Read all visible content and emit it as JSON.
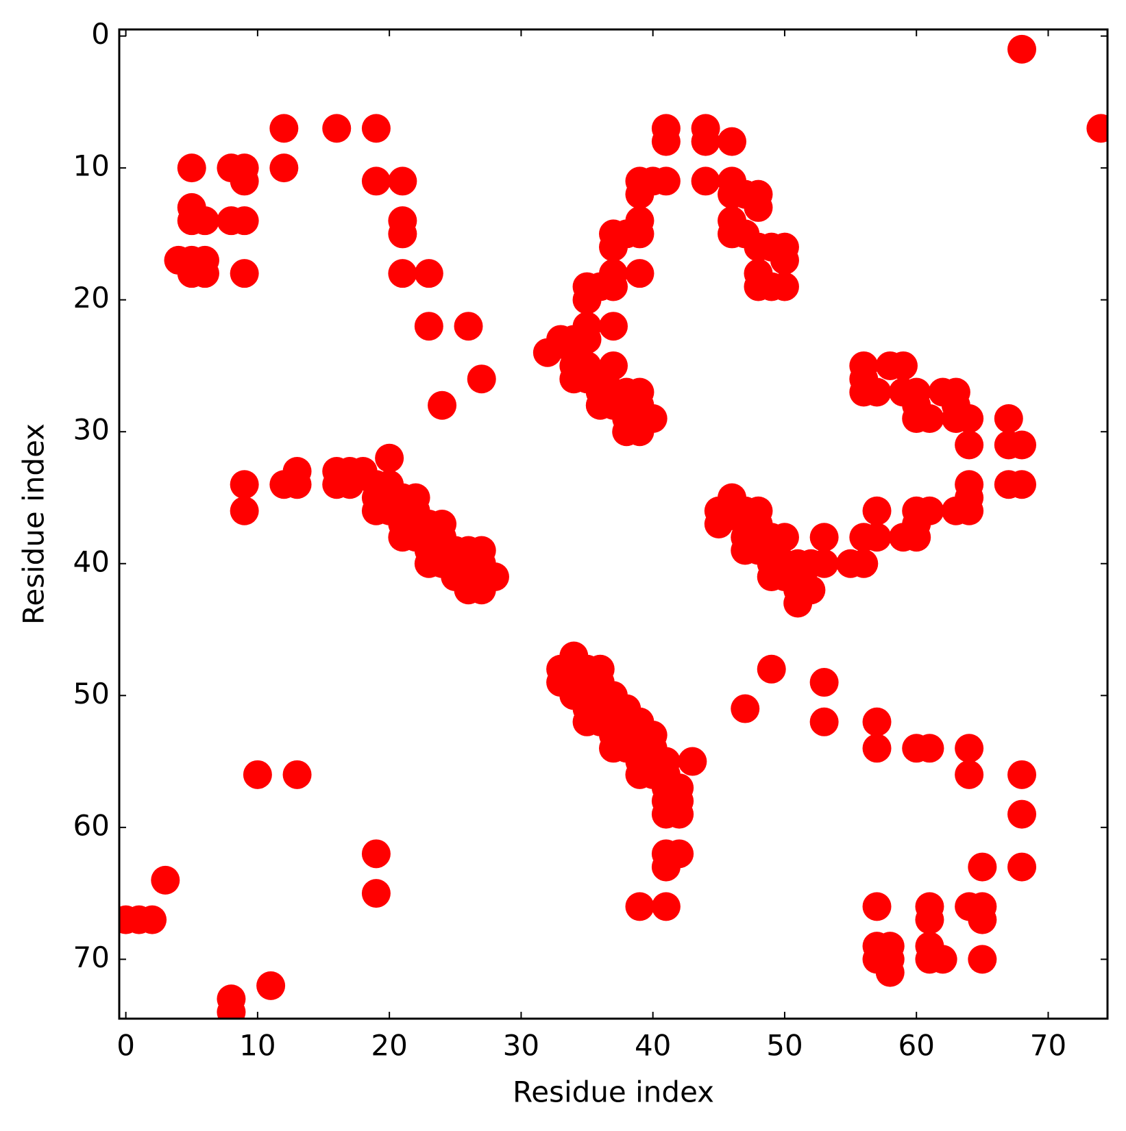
{
  "chart_data": {
    "type": "scatter",
    "xlabel": "Residue index",
    "ylabel": "Residue index",
    "color": "#ff0000",
    "xlim": [
      -0.5,
      74.5
    ],
    "ylim": [
      74.5,
      -0.5
    ],
    "xticks": [
      0,
      10,
      20,
      30,
      40,
      50,
      60,
      70
    ],
    "yticks": [
      0,
      10,
      20,
      30,
      40,
      50,
      60,
      70
    ],
    "x": [
      68,
      74,
      12,
      16,
      19,
      5,
      8,
      9,
      9,
      12,
      5,
      5,
      6,
      8,
      9,
      4,
      5,
      5,
      6,
      6,
      9,
      19,
      21,
      21,
      21,
      21,
      23,
      23,
      26,
      24,
      27,
      41,
      41,
      44,
      44,
      46,
      44,
      39,
      40,
      41,
      39,
      39,
      39,
      37,
      37,
      38,
      46,
      46,
      47,
      48,
      48,
      46,
      46,
      47,
      48,
      49,
      50,
      50,
      48,
      48,
      49,
      50,
      37,
      37,
      36,
      35,
      35,
      39,
      37,
      35,
      32,
      33,
      34,
      35,
      34,
      34,
      35,
      34,
      35,
      36,
      37,
      36,
      37,
      36,
      37,
      38,
      38,
      39,
      38,
      39,
      40,
      38,
      39,
      39,
      56,
      56,
      56,
      57,
      58,
      59,
      59,
      60,
      60,
      60,
      61,
      62,
      63,
      63,
      63,
      64,
      64,
      67,
      67,
      68,
      67,
      68,
      64,
      64,
      64,
      63,
      61,
      60,
      60,
      60,
      59,
      57,
      57,
      56,
      56,
      55,
      45,
      45,
      46,
      46,
      47,
      47,
      48,
      48,
      47,
      47,
      48,
      48,
      49,
      49,
      50,
      49,
      49,
      50,
      50,
      51,
      51,
      51,
      51,
      52,
      52,
      53,
      53,
      9,
      9,
      12,
      13,
      13,
      16,
      16,
      17,
      17,
      18,
      19,
      19,
      19,
      20,
      20,
      20,
      20,
      21,
      21,
      21,
      21,
      22,
      22,
      22,
      22,
      23,
      23,
      23,
      23,
      24,
      24,
      24,
      24,
      25,
      25,
      25,
      26,
      26,
      26,
      26,
      27,
      27,
      27,
      27,
      28,
      33,
      33,
      34,
      34,
      34,
      34,
      35,
      35,
      35,
      35,
      35,
      36,
      36,
      36,
      36,
      36,
      37,
      37,
      37,
      37,
      37,
      38,
      38,
      38,
      38,
      39,
      39,
      39,
      39,
      39,
      40,
      40,
      40,
      40,
      41,
      41,
      41,
      41,
      41,
      42,
      42,
      42,
      43,
      41,
      42,
      41,
      39,
      41,
      49,
      47,
      53,
      53,
      57,
      57,
      60,
      61,
      64,
      64,
      68,
      68,
      68,
      65,
      57,
      57,
      58,
      57,
      58,
      58,
      61,
      61,
      61,
      61,
      62,
      64,
      65,
      65,
      65,
      10,
      13,
      19,
      19,
      3,
      0,
      1,
      2,
      8,
      8,
      11
    ],
    "y": [
      1,
      7,
      7,
      7,
      7,
      10,
      10,
      10,
      11,
      10,
      13,
      14,
      14,
      14,
      14,
      17,
      17,
      18,
      17,
      18,
      18,
      11,
      11,
      14,
      15,
      18,
      18,
      22,
      22,
      28,
      26,
      7,
      8,
      7,
      8,
      8,
      11,
      11,
      11,
      11,
      12,
      14,
      15,
      15,
      16,
      15,
      11,
      12,
      12,
      12,
      13,
      14,
      15,
      15,
      16,
      16,
      16,
      17,
      18,
      19,
      19,
      19,
      18,
      19,
      19,
      19,
      20,
      18,
      22,
      22,
      24,
      23,
      23,
      23,
      24,
      25,
      25,
      26,
      26,
      26,
      25,
      27,
      27,
      28,
      28,
      27,
      28,
      27,
      29,
      28,
      29,
      30,
      30,
      29,
      25,
      26,
      27,
      27,
      25,
      25,
      27,
      27,
      28,
      29,
      29,
      27,
      27,
      28,
      29,
      29,
      31,
      29,
      31,
      31,
      34,
      34,
      34,
      35,
      36,
      36,
      36,
      36,
      37,
      38,
      38,
      36,
      38,
      38,
      40,
      40,
      36,
      37,
      35,
      36,
      36,
      37,
      36,
      37,
      38,
      39,
      38,
      39,
      38,
      39,
      38,
      40,
      41,
      40,
      41,
      40,
      41,
      42,
      43,
      40,
      42,
      40,
      38,
      34,
      36,
      34,
      33,
      34,
      33,
      34,
      33,
      34,
      33,
      34,
      35,
      36,
      32,
      34,
      35,
      36,
      35,
      36,
      37,
      38,
      35,
      36,
      37,
      38,
      37,
      38,
      39,
      40,
      37,
      38,
      39,
      40,
      39,
      40,
      41,
      39,
      40,
      41,
      42,
      39,
      40,
      41,
      42,
      41,
      48,
      49,
      47,
      48,
      49,
      50,
      48,
      49,
      50,
      51,
      52,
      48,
      49,
      50,
      51,
      52,
      50,
      51,
      52,
      53,
      54,
      51,
      52,
      53,
      54,
      52,
      53,
      54,
      55,
      56,
      53,
      54,
      55,
      56,
      55,
      56,
      57,
      58,
      59,
      57,
      58,
      59,
      55,
      62,
      62,
      63,
      66,
      66,
      48,
      51,
      49,
      52,
      52,
      54,
      54,
      54,
      54,
      56,
      56,
      59,
      63,
      63,
      66,
      69,
      69,
      70,
      70,
      71,
      66,
      67,
      69,
      70,
      70,
      66,
      66,
      67,
      70,
      56,
      56,
      62,
      65,
      64,
      67,
      67,
      67,
      73,
      74,
      72
    ]
  }
}
